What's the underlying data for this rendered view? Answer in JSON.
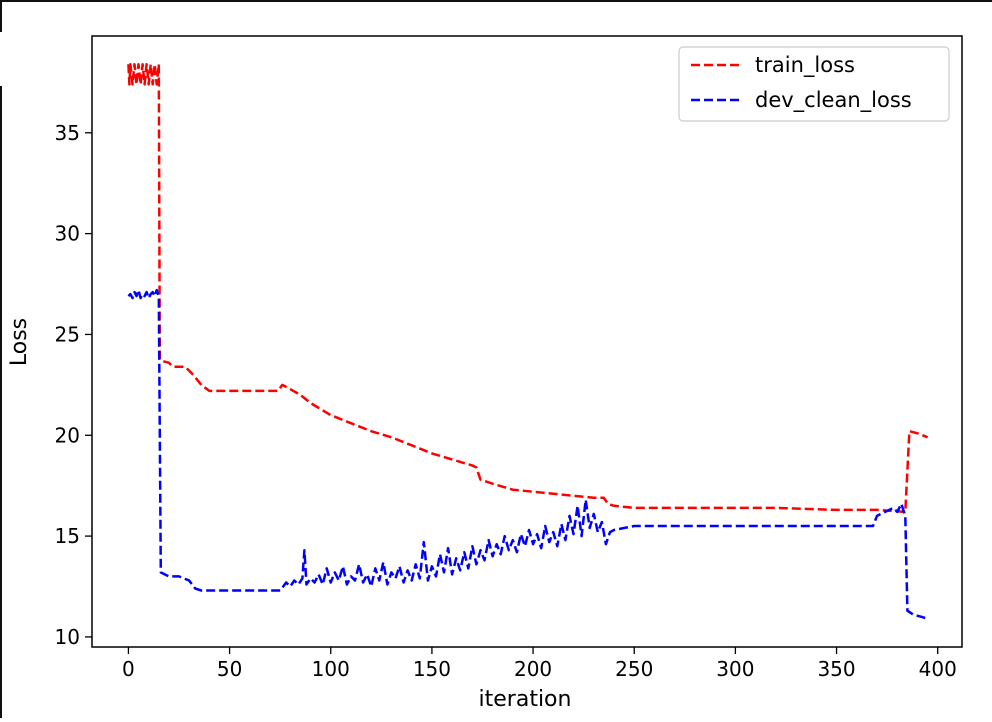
{
  "chart_data": {
    "type": "line",
    "xlabel": "iteration",
    "ylabel": "Loss",
    "xlim": [
      -18,
      412
    ],
    "ylim": [
      9.5,
      39.8
    ],
    "xticks": [
      0,
      50,
      100,
      150,
      200,
      250,
      300,
      350,
      400
    ],
    "yticks": [
      10,
      15,
      20,
      25,
      30,
      35
    ],
    "grid": false,
    "legend_position": "top-right",
    "series": [
      {
        "name": "train_loss",
        "color": "#ff0000",
        "line_style": "dashed",
        "points": [
          [
            0,
            38.4
          ],
          [
            0.5,
            37.4
          ],
          [
            1,
            38.4
          ],
          [
            2,
            37.4
          ],
          [
            3,
            38.4
          ],
          [
            4,
            37.4
          ],
          [
            5,
            38.4
          ],
          [
            6,
            37.4
          ],
          [
            7,
            38.4
          ],
          [
            8,
            37.4
          ],
          [
            9,
            38.4
          ],
          [
            10,
            37.4
          ],
          [
            11,
            38.4
          ],
          [
            12,
            37.4
          ],
          [
            13,
            38.4
          ],
          [
            14,
            37.4
          ],
          [
            15,
            38.4
          ],
          [
            15.5,
            23.8
          ],
          [
            16,
            23.7
          ],
          [
            20,
            23.6
          ],
          [
            22,
            23.4
          ],
          [
            28,
            23.4
          ],
          [
            32,
            23.0
          ],
          [
            36,
            22.5
          ],
          [
            40,
            22.2
          ],
          [
            60,
            22.2
          ],
          [
            74,
            22.2
          ],
          [
            76,
            22.5
          ],
          [
            78,
            22.4
          ],
          [
            85,
            22.0
          ],
          [
            90,
            21.6
          ],
          [
            100,
            21.0
          ],
          [
            110,
            20.6
          ],
          [
            120,
            20.2
          ],
          [
            130,
            19.9
          ],
          [
            140,
            19.5
          ],
          [
            150,
            19.1
          ],
          [
            160,
            18.8
          ],
          [
            170,
            18.5
          ],
          [
            172,
            18.4
          ],
          [
            174,
            17.8
          ],
          [
            180,
            17.6
          ],
          [
            190,
            17.3
          ],
          [
            200,
            17.2
          ],
          [
            210,
            17.1
          ],
          [
            220,
            17.0
          ],
          [
            230,
            16.9
          ],
          [
            235,
            16.9
          ],
          [
            237,
            16.6
          ],
          [
            240,
            16.5
          ],
          [
            250,
            16.4
          ],
          [
            300,
            16.4
          ],
          [
            320,
            16.4
          ],
          [
            350,
            16.3
          ],
          [
            370,
            16.3
          ],
          [
            384,
            16.2
          ],
          [
            386,
            20.2
          ],
          [
            390,
            20.1
          ],
          [
            395,
            19.9
          ]
        ]
      },
      {
        "name": "dev_clean_loss",
        "color": "#0000ff",
        "line_style": "dashed",
        "points": [
          [
            0,
            26.9
          ],
          [
            1,
            27.0
          ],
          [
            2,
            26.8
          ],
          [
            3,
            27.1
          ],
          [
            4,
            26.9
          ],
          [
            5,
            27.2
          ],
          [
            6,
            26.8
          ],
          [
            7,
            27.0
          ],
          [
            8,
            26.9
          ],
          [
            9,
            27.1
          ],
          [
            10,
            26.8
          ],
          [
            11,
            27.0
          ],
          [
            12,
            27.1
          ],
          [
            13,
            26.9
          ],
          [
            14,
            27.2
          ],
          [
            15,
            26.9
          ],
          [
            16,
            13.2
          ],
          [
            20,
            13.0
          ],
          [
            25,
            13.0
          ],
          [
            30,
            12.8
          ],
          [
            33,
            12.4
          ],
          [
            36,
            12.3
          ],
          [
            40,
            12.3
          ],
          [
            60,
            12.3
          ],
          [
            75,
            12.3
          ],
          [
            78,
            12.7
          ],
          [
            80,
            12.5
          ],
          [
            82,
            12.8
          ],
          [
            84,
            12.6
          ],
          [
            86,
            12.9
          ],
          [
            87,
            14.3
          ],
          [
            88,
            12.6
          ],
          [
            90,
            12.9
          ],
          [
            92,
            12.7
          ],
          [
            94,
            13.1
          ],
          [
            96,
            12.6
          ],
          [
            98,
            13.4
          ],
          [
            100,
            12.7
          ],
          [
            102,
            13.2
          ],
          [
            104,
            12.8
          ],
          [
            106,
            13.5
          ],
          [
            108,
            12.6
          ],
          [
            110,
            13.0
          ],
          [
            112,
            12.8
          ],
          [
            114,
            13.6
          ],
          [
            116,
            12.7
          ],
          [
            118,
            13.1
          ],
          [
            120,
            12.5
          ],
          [
            122,
            13.4
          ],
          [
            124,
            12.8
          ],
          [
            126,
            13.7
          ],
          [
            128,
            12.6
          ],
          [
            130,
            13.2
          ],
          [
            132,
            12.9
          ],
          [
            134,
            13.5
          ],
          [
            136,
            12.7
          ],
          [
            138,
            13.3
          ],
          [
            140,
            12.8
          ],
          [
            142,
            13.6
          ],
          [
            144,
            12.9
          ],
          [
            146,
            14.7
          ],
          [
            148,
            12.8
          ],
          [
            150,
            13.5
          ],
          [
            152,
            13.0
          ],
          [
            154,
            14.1
          ],
          [
            156,
            13.2
          ],
          [
            158,
            14.4
          ],
          [
            160,
            13.1
          ],
          [
            162,
            13.9
          ],
          [
            164,
            13.3
          ],
          [
            166,
            14.2
          ],
          [
            168,
            13.4
          ],
          [
            170,
            14.5
          ],
          [
            172,
            13.6
          ],
          [
            174,
            14.3
          ],
          [
            176,
            13.8
          ],
          [
            178,
            14.8
          ],
          [
            180,
            14.0
          ],
          [
            182,
            14.6
          ],
          [
            184,
            14.1
          ],
          [
            186,
            15.0
          ],
          [
            188,
            14.3
          ],
          [
            190,
            14.8
          ],
          [
            192,
            14.2
          ],
          [
            194,
            15.1
          ],
          [
            196,
            14.5
          ],
          [
            198,
            15.3
          ],
          [
            200,
            14.6
          ],
          [
            202,
            15.1
          ],
          [
            204,
            14.4
          ],
          [
            206,
            15.5
          ],
          [
            208,
            14.7
          ],
          [
            210,
            15.2
          ],
          [
            212,
            14.5
          ],
          [
            214,
            15.6
          ],
          [
            216,
            14.8
          ],
          [
            218,
            16.0
          ],
          [
            220,
            15.1
          ],
          [
            222,
            16.5
          ],
          [
            224,
            15.0
          ],
          [
            226,
            16.8
          ],
          [
            228,
            15.4
          ],
          [
            230,
            16.1
          ],
          [
            232,
            15.2
          ],
          [
            234,
            15.7
          ],
          [
            236,
            14.6
          ],
          [
            238,
            15.2
          ],
          [
            240,
            15.3
          ],
          [
            245,
            15.4
          ],
          [
            250,
            15.5
          ],
          [
            300,
            15.5
          ],
          [
            340,
            15.5
          ],
          [
            368,
            15.5
          ],
          [
            370,
            16.0
          ],
          [
            374,
            16.2
          ],
          [
            378,
            16.4
          ],
          [
            380,
            16.2
          ],
          [
            382,
            16.6
          ],
          [
            384,
            16.0
          ],
          [
            385,
            11.3
          ],
          [
            388,
            11.1
          ],
          [
            392,
            11.0
          ],
          [
            395,
            10.9
          ]
        ]
      }
    ]
  }
}
